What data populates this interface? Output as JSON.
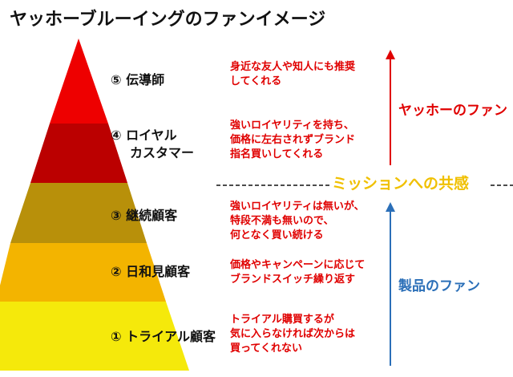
{
  "title": "ヤッホーブルーイングのファンイメージ",
  "levels": [
    {
      "label_1": "⑤ 伝導師",
      "label_2": "",
      "description": [
        "身近な友人や知人にも推奨",
        "してくれる"
      ]
    },
    {
      "label_1": "④ ロイヤル",
      "label_2": "カスタマー",
      "description": [
        "強いロイヤリティを持ち、",
        "価格に左右されずブランド",
        "指名買いしてくれる"
      ]
    },
    {
      "label_1": "③ 継続顧客",
      "label_2": "",
      "description": [
        "強いロイヤリティは無いが、",
        "特段不満も無いので、",
        "何となく買い続ける"
      ]
    },
    {
      "label_1": "② 日和見顧客",
      "label_2": "",
      "description": [
        "価格やキャンペーンに応じて",
        "ブランドスイッチ繰り返す"
      ]
    },
    {
      "label_1": "① トライアル顧客",
      "label_2": "",
      "description": [
        "トライアル購買するが",
        "気に入らなければ次からは",
        "買ってくれない"
      ]
    }
  ],
  "mission_label": "ミッションへの共感",
  "upper_label": "ヤッホーのファン",
  "lower_label": "製品のファン",
  "colors": {
    "tier_5": "#ee0000",
    "tier_4": "#bb0000",
    "tier_3": "#b8900a",
    "tier_2": "#f3b400",
    "tier_1": "#f5e90b",
    "description_text": "#e00000",
    "mission_text": "#f0c000",
    "upper_arrow": "#e00000",
    "lower_arrow": "#2b6fb8",
    "dashed_line": "#111111"
  }
}
